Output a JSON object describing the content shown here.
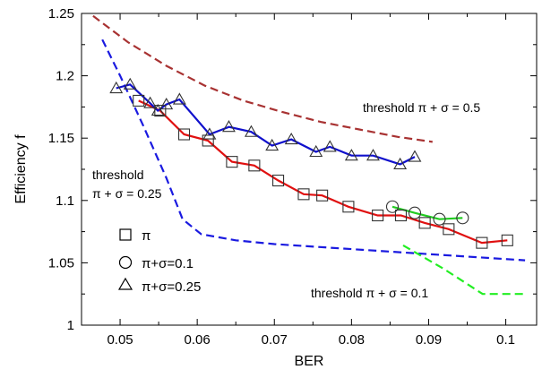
{
  "chart_data": {
    "type": "line",
    "xlabel": "BER",
    "ylabel": "Efficiency f",
    "xlim": [
      0.045,
      0.104
    ],
    "ylim": [
      1.0,
      1.25
    ],
    "x_ticks": [
      0.05,
      0.06,
      0.07,
      0.08,
      0.09,
      0.1
    ],
    "x_tick_labels": [
      "0.05",
      "0.06",
      "0.07",
      "0.08",
      "0.09",
      "0.1"
    ],
    "y_ticks": [
      1.0,
      1.05,
      1.1,
      1.15,
      1.2,
      1.25
    ],
    "y_tick_labels": [
      "1",
      "1.05",
      "1.1",
      "1.15",
      "1.2",
      "1.25"
    ],
    "grid": false,
    "legend_placement": "lower-left",
    "legend": [
      {
        "label": "π",
        "marker": "square"
      },
      {
        "label": "π+σ=0.1",
        "marker": "circle"
      },
      {
        "label": "π+σ=0.25",
        "marker": "triangle"
      }
    ],
    "annotations": [
      {
        "lines": [
          "threshold π + σ = 0.5"
        ]
      },
      {
        "lines": [
          "threshold",
          "π + σ = 0.25"
        ]
      },
      {
        "lines": [
          "threshold π + σ = 0.1"
        ]
      }
    ],
    "series": [
      {
        "marker": "square",
        "line_color": "#e01010",
        "points": [
          [
            0.0524,
            1.18
          ],
          [
            0.0552,
            1.172
          ],
          [
            0.0583,
            1.153
          ],
          [
            0.0614,
            1.148
          ],
          [
            0.0645,
            1.131
          ],
          [
            0.0674,
            1.128
          ],
          [
            0.0705,
            1.116
          ],
          [
            0.0738,
            1.105
          ],
          [
            0.0762,
            1.104
          ],
          [
            0.0796,
            1.095
          ],
          [
            0.0834,
            1.088
          ],
          [
            0.0864,
            1.088
          ],
          [
            0.0895,
            1.082
          ],
          [
            0.0926,
            1.077
          ],
          [
            0.0969,
            1.066
          ],
          [
            0.1002,
            1.068
          ]
        ]
      },
      {
        "marker": "circle",
        "line_color": "#22cc22",
        "points": [
          [
            0.0853,
            1.095
          ],
          [
            0.0882,
            1.09
          ],
          [
            0.0914,
            1.085
          ],
          [
            0.0944,
            1.086
          ]
        ]
      },
      {
        "marker": "triangle",
        "line_color": "#1010cc",
        "points": [
          [
            0.0495,
            1.19
          ],
          [
            0.0513,
            1.193
          ],
          [
            0.0539,
            1.178
          ],
          [
            0.0549,
            1.172
          ],
          [
            0.056,
            1.177
          ],
          [
            0.0577,
            1.181
          ],
          [
            0.0616,
            1.153
          ],
          [
            0.0641,
            1.159
          ],
          [
            0.067,
            1.155
          ],
          [
            0.0697,
            1.144
          ],
          [
            0.0722,
            1.149
          ],
          [
            0.0754,
            1.139
          ],
          [
            0.0772,
            1.143
          ],
          [
            0.08,
            1.136
          ],
          [
            0.0828,
            1.136
          ],
          [
            0.0863,
            1.129
          ],
          [
            0.0882,
            1.135
          ]
        ]
      }
    ],
    "thresholds": [
      {
        "color": "#a83232",
        "points": [
          [
            0.0465,
            1.248
          ],
          [
            0.051,
            1.227
          ],
          [
            0.056,
            1.208
          ],
          [
            0.061,
            1.192
          ],
          [
            0.066,
            1.18
          ],
          [
            0.071,
            1.171
          ],
          [
            0.076,
            1.163
          ],
          [
            0.081,
            1.157
          ],
          [
            0.086,
            1.151
          ],
          [
            0.0905,
            1.147
          ]
        ]
      },
      {
        "color": "#1a1ae0",
        "points": [
          [
            0.0477,
            1.229
          ],
          [
            0.05,
            1.2
          ],
          [
            0.053,
            1.16
          ],
          [
            0.056,
            1.118
          ],
          [
            0.0581,
            1.085
          ],
          [
            0.0605,
            1.073
          ],
          [
            0.065,
            1.068
          ],
          [
            0.07,
            1.065
          ],
          [
            0.08,
            1.061
          ],
          [
            0.09,
            1.057
          ],
          [
            0.1025,
            1.052
          ]
        ]
      },
      {
        "color": "#22ee22",
        "points": [
          [
            0.0867,
            1.064
          ],
          [
            0.092,
            1.045
          ],
          [
            0.097,
            1.025
          ],
          [
            0.1025,
            1.025
          ]
        ]
      }
    ]
  }
}
